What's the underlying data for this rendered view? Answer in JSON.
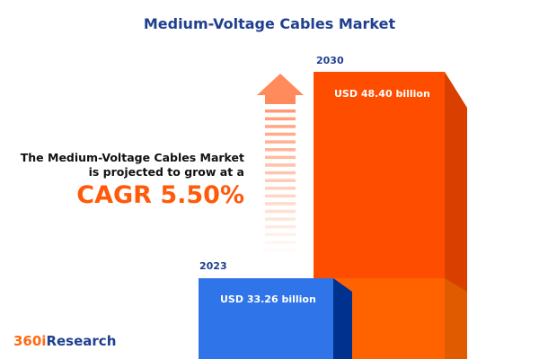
{
  "title": "Medium-Voltage Cables Market",
  "headline": {
    "line1": "The Medium-Voltage Cables Market",
    "line2": "is projected to grow at a",
    "cagr": "CAGR 5.50%"
  },
  "logo": {
    "part1": "360i",
    "part2": "Research"
  },
  "colors": {
    "bar_2023": "#2f74e8",
    "bar_2030": "#ff4d00",
    "title": "#1f3f8f",
    "accent": "#ff5a0a"
  },
  "chart_data": {
    "type": "bar",
    "title": "Medium-Voltage Cables Market",
    "categories": [
      "2023",
      "2030"
    ],
    "values": [
      33.26,
      48.4
    ],
    "labels": [
      "USD 33.26 billion",
      "USD 48.40 billion"
    ],
    "unit": "USD billion",
    "cagr": "5.50%",
    "grid": false,
    "legend": "none"
  }
}
